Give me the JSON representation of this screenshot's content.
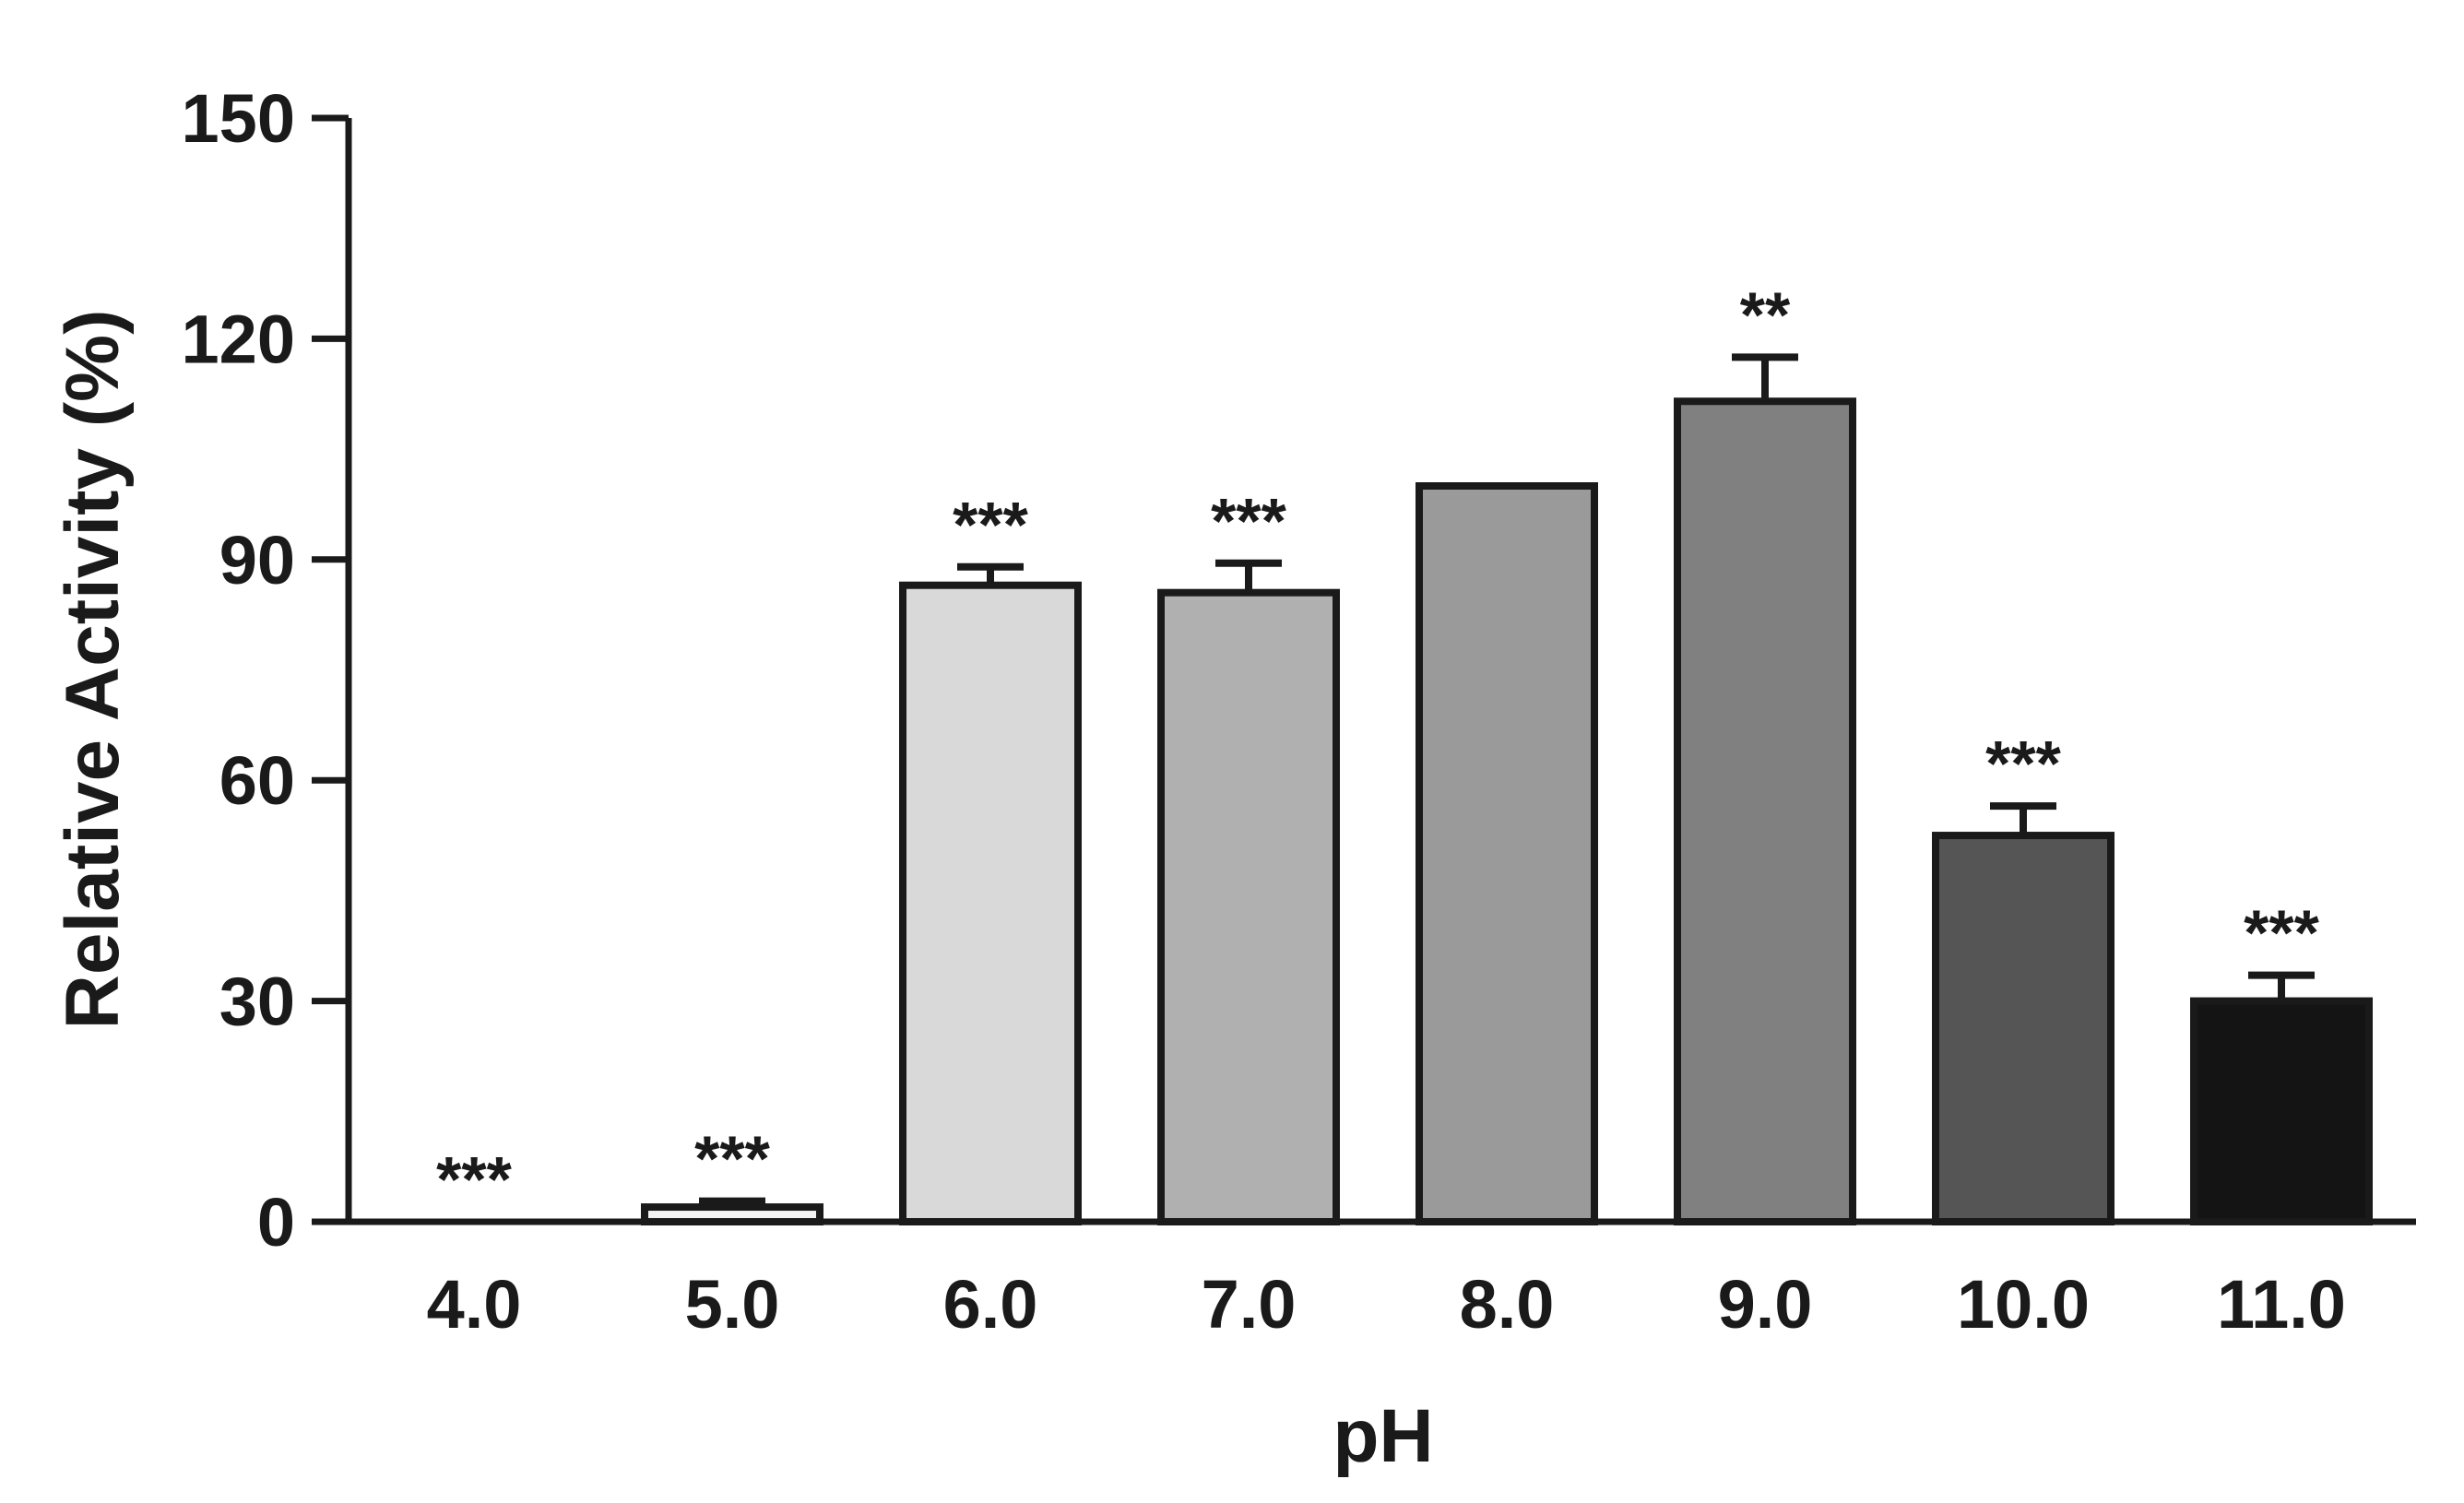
{
  "chart_data": {
    "type": "bar",
    "title": "",
    "xlabel": "pH",
    "ylabel": "Relative Activity (%)",
    "ylim": [
      0,
      150
    ],
    "yticks": [
      "0",
      "30",
      "60",
      "90",
      "120",
      "150"
    ],
    "categories": [
      "4.0",
      "5.0",
      "6.0",
      "7.0",
      "8.0",
      "9.0",
      "10.0",
      "11.0"
    ],
    "values": [
      0,
      2,
      86.5,
      85.5,
      100,
      111.5,
      52.5,
      30
    ],
    "errors": [
      0,
      0.8,
      2.5,
      4,
      0,
      6,
      4,
      3.5
    ],
    "significance": [
      "***",
      "***",
      "***",
      "***",
      "",
      "**",
      "***",
      "***"
    ],
    "colors": [
      "#ffffff",
      "#f2f2f2",
      "#d9d9d9",
      "#b0b0b0",
      "#9a9a9a",
      "#808080",
      "#555555",
      "#141414"
    ],
    "grid": false,
    "legend": "none"
  }
}
